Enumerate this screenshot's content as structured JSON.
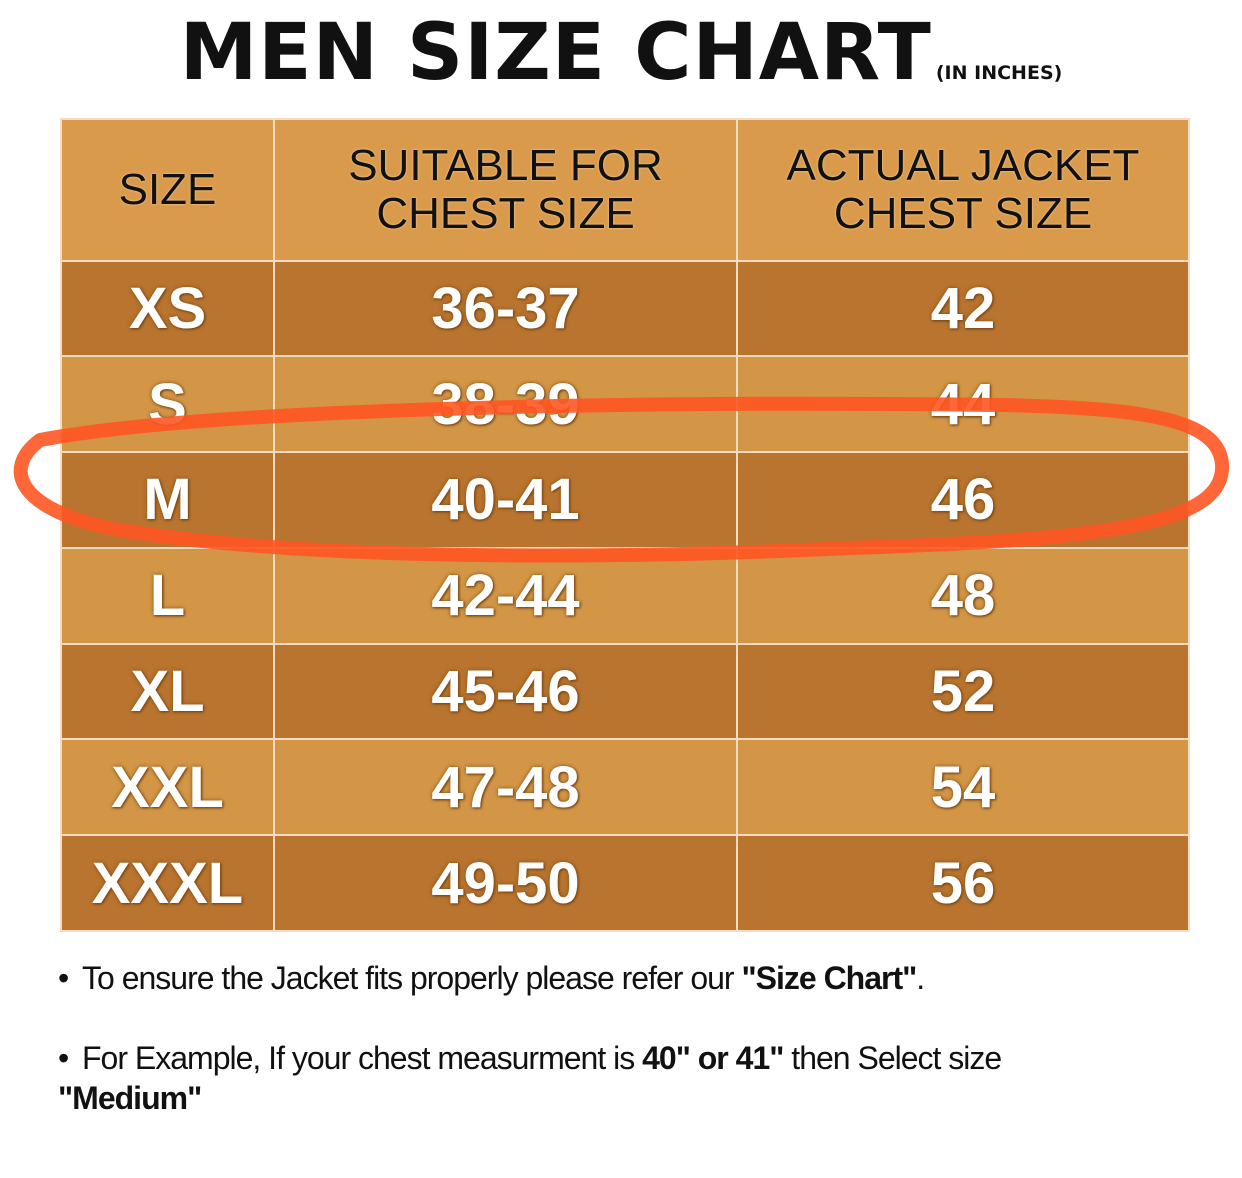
{
  "title": {
    "main": "MEN SIZE CHART",
    "unit": "(IN INCHES)"
  },
  "table": {
    "headers": [
      "SIZE",
      "SUITABLE FOR CHEST SIZE",
      "ACTUAL JACKET CHEST SIZE"
    ],
    "rows": [
      [
        "XS",
        "36-37",
        "42"
      ],
      [
        "S",
        "38-39",
        "44"
      ],
      [
        "M",
        "40-41",
        "46"
      ],
      [
        "L",
        "42-44",
        "48"
      ],
      [
        "XL",
        "45-46",
        "52"
      ],
      [
        "XXL",
        "47-48",
        "54"
      ],
      [
        "XXXL",
        "49-50",
        "56"
      ]
    ],
    "highlighted_row": "M"
  },
  "notes": [
    {
      "pre": "To ensure the Jacket fits properly please refer our ",
      "bold": "\"Size Chart\"",
      "post": "."
    },
    {
      "pre": "For Example, If your chest measurment is ",
      "bold": "40\" or 41\"",
      "post": " then Select size ",
      "bold2": "\"Medium\""
    }
  ],
  "colors": {
    "header": "#d99a4c",
    "row_dark": "#b9742f",
    "row_light": "#d39647",
    "highlight_marker": "#ff5522"
  }
}
